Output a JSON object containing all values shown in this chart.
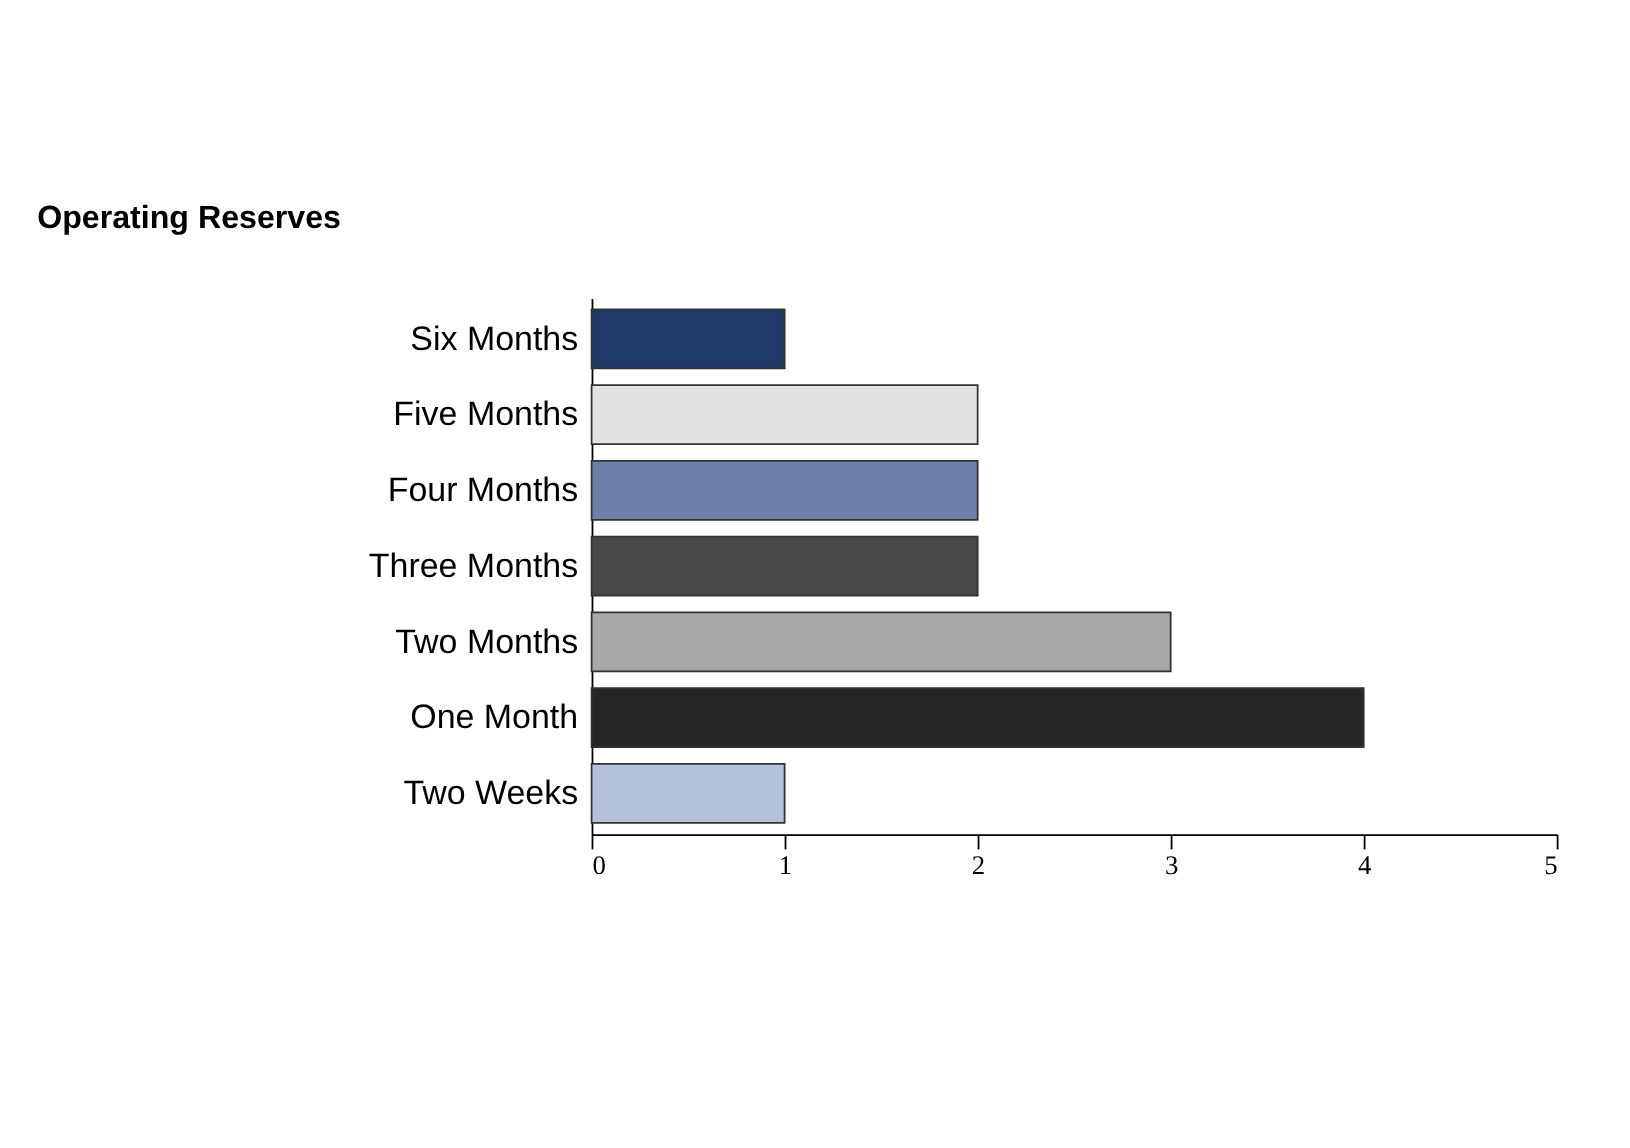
{
  "chart_data": {
    "type": "bar",
    "orientation": "horizontal",
    "title": "Operating Reserves",
    "categories": [
      "Six Months",
      "Five Months",
      "Four Months",
      "Three Months",
      "Two Months",
      "One Month",
      "Two Weeks"
    ],
    "values": [
      1,
      2,
      2,
      2,
      3,
      4,
      1
    ],
    "colors": [
      "#1f3a68",
      "#e2e2e2",
      "#6b7fa8",
      "#484848",
      "#a8a8a8",
      "#262626",
      "#b4c0dc"
    ],
    "xlim": [
      0,
      5
    ],
    "xticks": [
      0,
      1,
      2,
      3,
      4,
      5
    ],
    "grid": false
  }
}
